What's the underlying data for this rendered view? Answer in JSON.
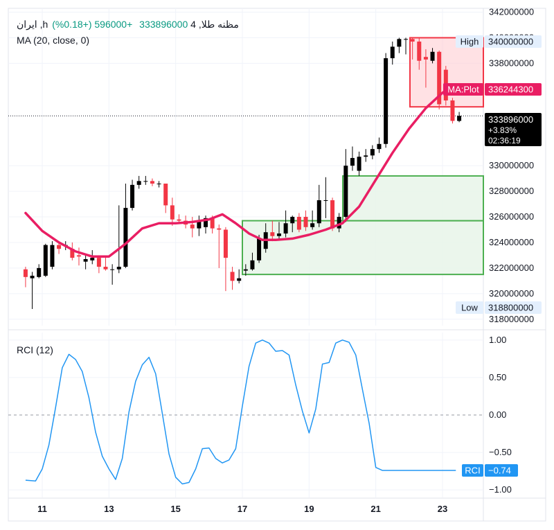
{
  "header": {
    "symbol": "ایران ,hمظنه طلا, 4",
    "last_price": "333896000",
    "change": "+596000 (+0.18%)",
    "ma_label": "MA (20, close, 0)"
  },
  "indicator": {
    "name": "RCI (12)"
  },
  "price_scale": {
    "ticks": [
      "342000000",
      "340000000",
      "338000000",
      "330000000",
      "328000000",
      "326000000",
      "324000000",
      "322000000",
      "320000000",
      "318000000"
    ],
    "ticks_values": [
      342000000,
      340000000,
      338000000,
      330000000,
      328000000,
      326000000,
      324000000,
      322000000,
      320000000,
      318000000
    ],
    "high_label": "High",
    "high_value": "340000000",
    "low_label": "Low",
    "low_value": "318800000",
    "ma_tag_label": "MA:Plot",
    "ma_tag_value": "336244300",
    "last_value": "333896000",
    "last_change": "+3.83%",
    "countdown": "02:36:19"
  },
  "rci_scale": {
    "ticks": [
      "1.00",
      "0.50",
      "0.00",
      "−0.50",
      "−1.00"
    ],
    "ticks_values": [
      1,
      0.5,
      0,
      -0.5,
      -1
    ],
    "tag_label": "RCI",
    "tag_value": "−0.74"
  },
  "time_axis": {
    "labels": [
      "11",
      "13",
      "15",
      "17",
      "19",
      "21",
      "23"
    ]
  },
  "colors": {
    "up": "#000000",
    "down": "#f23645",
    "ma": "#e91e63",
    "rci": "#2196f3",
    "box": "#4caf50",
    "box_fill": "#e8f5e9",
    "red_box": "#f23645",
    "header_green": "#089981"
  },
  "chart_data": [
    {
      "type": "candlestick",
      "title": "ایران ,hمظنه طلا, 4",
      "x": [
        "10.5",
        "10.7",
        "10.9",
        "11.1",
        "11.3",
        "11.5",
        "11.7",
        "11.9",
        "12.1",
        "12.3",
        "12.5",
        "12.7",
        "12.9",
        "13.1",
        "13.3",
        "13.5",
        "13.7",
        "13.9",
        "14.1",
        "14.3",
        "14.5",
        "14.7",
        "14.9",
        "15.1",
        "15.3",
        "15.5",
        "15.7",
        "15.9",
        "16.1",
        "16.3",
        "16.5",
        "16.7",
        "16.9",
        "17.1",
        "17.3",
        "17.5",
        "17.7",
        "17.9",
        "18.1",
        "18.3",
        "18.5",
        "18.7",
        "18.9",
        "19.1",
        "19.3",
        "19.5",
        "19.7",
        "19.9",
        "20.1",
        "20.3",
        "20.5",
        "20.7",
        "20.9",
        "21.1",
        "21.3",
        "21.5",
        "21.7",
        "21.9",
        "22.1",
        "22.3",
        "22.5",
        "22.7",
        "22.9",
        "23.1",
        "23.3",
        "23.5"
      ],
      "open": [
        321900000,
        321200000,
        321300000,
        321400000,
        322100000,
        323800000,
        323800000,
        323500000,
        323000000,
        322500000,
        322600000,
        322800000,
        322100000,
        321900000,
        321900000,
        322100000,
        326700000,
        328500000,
        328800000,
        328800000,
        328600000,
        328600000,
        326900000,
        325800000,
        325700000,
        325400000,
        325100000,
        325200000,
        325900000,
        325100000,
        325000000,
        321700000,
        321000000,
        321800000,
        321900000,
        322600000,
        323500000,
        324800000,
        324500000,
        324700000,
        325500000,
        326000000,
        326000000,
        325200000,
        325500000,
        327300000,
        327300000,
        325100000,
        326000000,
        330000000,
        329600000,
        330700000,
        330800000,
        331300000,
        331700000,
        338400000,
        339300000,
        339900000,
        339900000,
        339700000,
        338500000,
        338200000,
        338900000,
        337500000,
        335100000,
        333500000
      ],
      "close": [
        321300000,
        321400000,
        322000000,
        323800000,
        323800000,
        323500000,
        323800000,
        322800000,
        322900000,
        322700000,
        322800000,
        322100000,
        321900000,
        321900000,
        322100000,
        326700000,
        328500000,
        328800000,
        328800000,
        328600000,
        328600000,
        326900000,
        325800000,
        325700000,
        325400000,
        325100000,
        325700000,
        325900000,
        325100000,
        325000000,
        322800000,
        321000000,
        321200000,
        321900000,
        322600000,
        324300000,
        324800000,
        324500000,
        324700000,
        325500000,
        326000000,
        325000000,
        325200000,
        325500000,
        327300000,
        327300000,
        325100000,
        326000000,
        330000000,
        330600000,
        330700000,
        330800000,
        331300000,
        331700000,
        338400000,
        339300000,
        339900000,
        339900000,
        339700000,
        338200000,
        338300000,
        338900000,
        334800000,
        335100000,
        333500000,
        333896000
      ],
      "high": [
        322100000,
        321700000,
        322300000,
        323900000,
        324100000,
        324000000,
        324100000,
        324000000,
        323600000,
        323100000,
        323400000,
        323000000,
        322900000,
        322300000,
        326900000,
        328600000,
        328900000,
        329200000,
        329200000,
        329000000,
        328800000,
        328600000,
        327500000,
        326200000,
        326100000,
        326000000,
        326100000,
        326100000,
        326100000,
        325400000,
        325200000,
        322100000,
        321900000,
        322300000,
        323200000,
        324600000,
        325500000,
        325700000,
        325600000,
        326500000,
        326100000,
        326300000,
        326500000,
        326500000,
        328500000,
        329100000,
        327500000,
        326300000,
        331300000,
        331500000,
        331100000,
        331300000,
        331600000,
        332200000,
        338800000,
        339700000,
        340000000,
        340000000,
        340000000,
        340000000,
        339100000,
        339200000,
        339000000,
        337800000,
        335300000,
        334200000
      ],
      "low": [
        320500000,
        318800000,
        321200000,
        321300000,
        321900000,
        323100000,
        323400000,
        322600000,
        322200000,
        321900000,
        322300000,
        321600000,
        321800000,
        320700000,
        321600000,
        322000000,
        326500000,
        328200000,
        328500000,
        328400000,
        328300000,
        326300000,
        325300000,
        325500000,
        325100000,
        324400000,
        324500000,
        324700000,
        324700000,
        322000000,
        320200000,
        320300000,
        320800000,
        321400000,
        321800000,
        322400000,
        323200000,
        324100000,
        324300000,
        324400000,
        324800000,
        324800000,
        324900000,
        325000000,
        325200000,
        325900000,
        324900000,
        324800000,
        325600000,
        329600000,
        329200000,
        330300000,
        330500000,
        331000000,
        331400000,
        337900000,
        338800000,
        338700000,
        338300000,
        337500000,
        336100000,
        338000000,
        334400000,
        334700000,
        333300000,
        333400000
      ]
    },
    {
      "type": "line",
      "name": "MA (20, close, 0)",
      "x": [
        10.5,
        11.0,
        11.5,
        12.0,
        12.5,
        13.0,
        13.5,
        14.0,
        14.5,
        15.0,
        15.5,
        16.0,
        16.4,
        16.8,
        17.2,
        17.6,
        18.0,
        18.5,
        19.0,
        19.5,
        20.0,
        20.5,
        21.0,
        21.5,
        22.0,
        22.5,
        23.0,
        23.3
      ],
      "values": [
        326300000,
        324900000,
        324000000,
        323300000,
        322900000,
        322900000,
        323900000,
        325100000,
        325500000,
        325500000,
        325600000,
        325800000,
        326200000,
        325500000,
        324700000,
        324200000,
        324200000,
        324300000,
        324600000,
        325000000,
        325500000,
        326800000,
        328900000,
        331000000,
        332900000,
        334500000,
        335700000,
        336244300
      ],
      "ylim": [
        317500000,
        342300000
      ]
    },
    {
      "type": "line",
      "name": "RCI (12)",
      "x": [
        10.5,
        10.8,
        11.0,
        11.2,
        11.4,
        11.6,
        11.8,
        12.0,
        12.2,
        12.4,
        12.6,
        12.8,
        13.0,
        13.2,
        13.4,
        13.6,
        13.8,
        14.0,
        14.2,
        14.4,
        14.6,
        14.8,
        15.0,
        15.2,
        15.4,
        15.6,
        15.8,
        16.0,
        16.2,
        16.4,
        16.6,
        16.8,
        17.0,
        17.2,
        17.4,
        17.6,
        17.8,
        18.0,
        18.2,
        18.4,
        18.6,
        18.8,
        19.0,
        19.2,
        19.4,
        19.6,
        19.8,
        20.0,
        20.2,
        20.4,
        20.6,
        20.8,
        21.0,
        21.2,
        21.4,
        21.6,
        21.8,
        22.0,
        22.2,
        22.4,
        22.6,
        22.8,
        23.0,
        23.2,
        23.4
      ],
      "values": [
        -0.87,
        -0.88,
        -0.72,
        -0.4,
        0.1,
        0.63,
        0.81,
        0.74,
        0.58,
        0.23,
        -0.23,
        -0.55,
        -0.72,
        -0.86,
        -0.58,
        0.04,
        0.45,
        0.67,
        0.77,
        0.55,
        0.02,
        -0.52,
        -0.83,
        -0.92,
        -0.9,
        -0.72,
        -0.45,
        -0.44,
        -0.58,
        -0.64,
        -0.6,
        -0.45,
        0.12,
        0.65,
        0.96,
        1.0,
        0.96,
        0.85,
        0.86,
        0.8,
        0.4,
        0.05,
        -0.24,
        0.08,
        0.68,
        0.7,
        0.96,
        1.0,
        0.97,
        0.8,
        0.34,
        -0.11,
        -0.7,
        -0.74,
        -0.74,
        -0.74,
        -0.74,
        -0.74,
        -0.74,
        -0.74,
        -0.74,
        -0.74,
        -0.74,
        -0.74,
        -0.74
      ],
      "ylim": [
        -1.1,
        1.1
      ]
    }
  ]
}
